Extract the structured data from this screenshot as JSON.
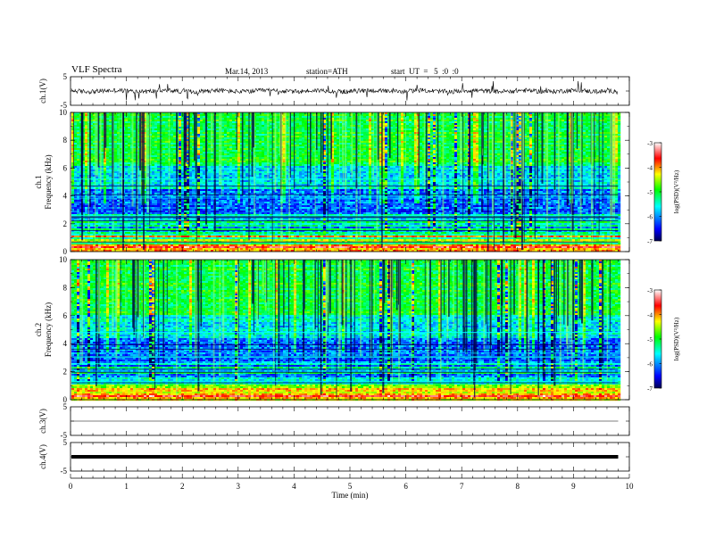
{
  "header": {
    "title": "VLF Spectra",
    "date": "Mar.14, 2013",
    "station": "station=ATH",
    "start_ut": "start  UT  =   5  :0  :0"
  },
  "chart_data": [
    {
      "type": "line",
      "name": "ch1-waveform",
      "ylabel": "ch.1(V)",
      "ylim": [
        -5,
        5
      ],
      "yticks": [
        "5",
        "-5"
      ],
      "xlim": [
        0,
        10
      ],
      "note_trace": "noisy baseline near 0 V with spikes",
      "data_end_min": 9.8
    },
    {
      "type": "heatmap",
      "name": "ch1-spectrogram",
      "ylabel_top": "ch.1",
      "ylabel": "Frequency  (kHz)",
      "ylim": [
        0,
        10
      ],
      "yticks": [
        "0",
        "2",
        "4",
        "6",
        "8",
        "10"
      ],
      "xlim": [
        0,
        10
      ],
      "data_end_min": 9.8,
      "colorbar": {
        "label": "log(PSD)(V²/Hz)",
        "range": [
          -7,
          -3
        ],
        "ticks": [
          "-3",
          "-4",
          "-5",
          "-6",
          "-7"
        ]
      },
      "colormap": [
        "#000050",
        "#0000ff",
        "#00ffff",
        "#00ff00",
        "#ffff00",
        "#ff0000",
        "#ffffff"
      ]
    },
    {
      "type": "heatmap",
      "name": "ch2-spectrogram",
      "ylabel_top": "ch.2",
      "ylabel": "Frequency  (kHz)",
      "ylim": [
        0,
        10
      ],
      "yticks": [
        "0",
        "2",
        "4",
        "6",
        "8",
        "10"
      ],
      "xlim": [
        0,
        10
      ],
      "data_end_min": 9.8,
      "colorbar": {
        "label": "log(PSD)(V²/Hz)",
        "range": [
          -7,
          -3
        ],
        "ticks": [
          "-3",
          "-4",
          "-5",
          "-6",
          "-7"
        ]
      },
      "colormap": [
        "#000050",
        "#0000ff",
        "#00ffff",
        "#00ff00",
        "#ffff00",
        "#ff0000",
        "#ffffff"
      ]
    },
    {
      "type": "line",
      "name": "ch3-waveform",
      "ylabel": "ch.3(V)",
      "ylim": [
        -5,
        5
      ],
      "yticks": [
        "5",
        "-5"
      ],
      "xlim": [
        0,
        10
      ],
      "note_trace": "flat line near 0 V",
      "data_end_min": 9.8
    },
    {
      "type": "line",
      "name": "ch4-waveform",
      "ylabel": "ch.4(V)",
      "ylim": [
        -5,
        5
      ],
      "yticks": [
        "5",
        "-5"
      ],
      "xlim": [
        0,
        10
      ],
      "note_trace": "thick flat band near 0 V",
      "data_end_min": 9.8
    }
  ],
  "xaxis": {
    "label": "Time  (min)",
    "ticks": [
      "0",
      "1",
      "2",
      "3",
      "4",
      "5",
      "6",
      "7",
      "8",
      "9",
      "10"
    ]
  }
}
